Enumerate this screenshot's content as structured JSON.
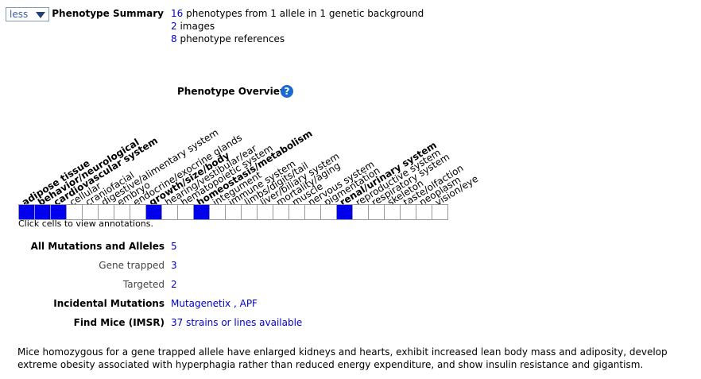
{
  "toggle": {
    "label": "less"
  },
  "phenotype_summary": {
    "label": "Phenotype Summary",
    "phenotypes_count": "16",
    "phenotypes_text": " phenotypes from 1 allele in 1 genetic background",
    "images_count": "2",
    "images_text": " images",
    "refs_count": "8",
    "refs_text": " phenotype references"
  },
  "overview": {
    "title": "Phenotype Overview",
    "help_glyph": "?",
    "hint": "Click cells to view annotations.",
    "systems": [
      {
        "label": "adipose tissue",
        "bold": true,
        "annotated": true
      },
      {
        "label": "behavior/neurological",
        "bold": true,
        "annotated": true
      },
      {
        "label": "cardiovascular system",
        "bold": true,
        "annotated": true
      },
      {
        "label": "cellular",
        "bold": false,
        "annotated": false
      },
      {
        "label": "craniofacial",
        "bold": false,
        "annotated": false
      },
      {
        "label": "digestive/alimentary system",
        "bold": false,
        "annotated": false
      },
      {
        "label": "embryo",
        "bold": false,
        "annotated": false
      },
      {
        "label": "endocrine/exocrine glands",
        "bold": false,
        "annotated": false
      },
      {
        "label": "growth/size/body",
        "bold": true,
        "annotated": true
      },
      {
        "label": "hearing/vestibular/ear",
        "bold": false,
        "annotated": false
      },
      {
        "label": "hematopoietic system",
        "bold": false,
        "annotated": false
      },
      {
        "label": "homeostasis/metabolism",
        "bold": true,
        "annotated": true
      },
      {
        "label": "integument",
        "bold": false,
        "annotated": false
      },
      {
        "label": "immune system",
        "bold": false,
        "annotated": false
      },
      {
        "label": "limbs/digits/tail",
        "bold": false,
        "annotated": false
      },
      {
        "label": "liver/biliary system",
        "bold": false,
        "annotated": false
      },
      {
        "label": "mortality/aging",
        "bold": false,
        "annotated": false
      },
      {
        "label": "muscle",
        "bold": false,
        "annotated": false
      },
      {
        "label": "nervous system",
        "bold": false,
        "annotated": false
      },
      {
        "label": "pigmentation",
        "bold": false,
        "annotated": false
      },
      {
        "label": "renal/urinary system",
        "bold": true,
        "annotated": true
      },
      {
        "label": "reproductive system",
        "bold": false,
        "annotated": false
      },
      {
        "label": "respiratory system",
        "bold": false,
        "annotated": false
      },
      {
        "label": "skeleton",
        "bold": false,
        "annotated": false
      },
      {
        "label": "taste/olfaction",
        "bold": false,
        "annotated": false
      },
      {
        "label": "neoplasm",
        "bold": false,
        "annotated": false
      },
      {
        "label": "vision/eye",
        "bold": false,
        "annotated": false
      }
    ],
    "colors": {
      "annotated": "#0000ee",
      "empty": "#ffffff"
    }
  },
  "alleles": {
    "all_label": "All Mutations and Alleles",
    "all_value": "5",
    "gene_trapped_label": "Gene trapped",
    "gene_trapped_value": "3",
    "targeted_label": "Targeted",
    "targeted_value": "2",
    "incidental_label": "Incidental Mutations",
    "incidental_link1": "Mutagenetix",
    "incidental_sep": " , ",
    "incidental_link2": "APF",
    "find_mice_label": "Find Mice (IMSR)",
    "find_mice_value": "37 strains or lines available"
  },
  "description": "Mice homozygous for a gene trapped allele have enlarged kidneys and hearts, exhibit increased lean body mass and adiposity, develop extreme obesity associated with hyperphagia rather than reduced energy expenditure, and show insulin resistance and gigantism."
}
